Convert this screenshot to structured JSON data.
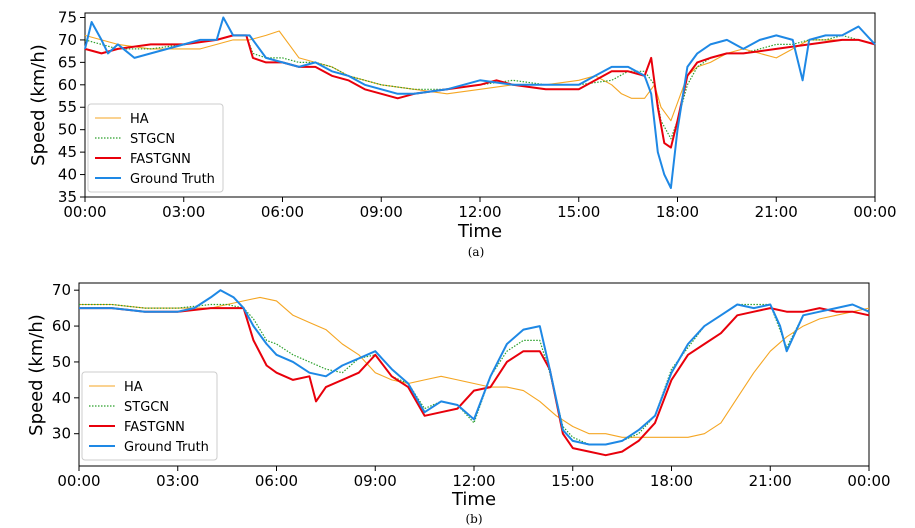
{
  "chart_data": [
    {
      "type": "line",
      "panel_label": "(a)",
      "xlabel": "Time",
      "ylabel": "Speed (km/h)",
      "xlim": [
        0,
        24
      ],
      "ylim": [
        35,
        76
      ],
      "xticks": [
        0,
        3,
        6,
        9,
        12,
        15,
        18,
        21,
        24
      ],
      "xtick_labels": [
        "00:00",
        "03:00",
        "06:00",
        "09:00",
        "12:00",
        "15:00",
        "18:00",
        "21:00",
        "00:00"
      ],
      "yticks": [
        35,
        40,
        45,
        50,
        55,
        60,
        65,
        70,
        75
      ],
      "ytick_labels": [
        "35",
        "40",
        "45",
        "50",
        "55",
        "60",
        "65",
        "70",
        "75"
      ],
      "grid": false,
      "legend_position": "lower-left",
      "series": [
        {
          "name": "HA",
          "color": "#f5a623",
          "style": "solid",
          "x": [
            0,
            1,
            2,
            3,
            3.5,
            4,
            4.5,
            5,
            5.5,
            5.9,
            6.2,
            6.5,
            7,
            7.5,
            8,
            9,
            10,
            11,
            12,
            13,
            14,
            15,
            15.5,
            16,
            16.3,
            16.6,
            17,
            17.3,
            17.5,
            17.8,
            18,
            18.3,
            18.6,
            19,
            19.5,
            20,
            20.5,
            21,
            21.5,
            22,
            23,
            23.5,
            24
          ],
          "y": [
            71,
            69,
            68,
            68,
            68,
            69,
            70,
            70,
            71,
            72,
            69,
            66,
            65,
            64,
            62,
            60,
            59,
            58,
            59,
            60,
            60,
            61,
            62,
            60,
            58,
            57,
            57,
            60,
            55,
            52,
            56,
            62,
            64,
            65,
            67,
            68,
            67,
            66,
            68,
            70,
            70,
            70,
            69
          ]
        },
        {
          "name": "STGCN",
          "color": "#2ca02c",
          "style": "dotted",
          "x": [
            0,
            0.5,
            1,
            2,
            3,
            4,
            4.5,
            4.9,
            5.1,
            5.5,
            6,
            6.5,
            7,
            7.5,
            8,
            8.5,
            9,
            10,
            11,
            12,
            13,
            14,
            15,
            16,
            16.5,
            17,
            17.3,
            17.5,
            17.8,
            18,
            18.3,
            18.6,
            19,
            19.5,
            20,
            20.5,
            21,
            21.5,
            22,
            22.5,
            23,
            23.5,
            24
          ],
          "y": [
            70,
            69,
            68,
            68,
            69,
            70,
            71,
            71,
            67,
            66,
            66,
            65,
            65,
            64,
            62,
            61,
            60,
            59,
            59,
            60,
            61,
            60,
            60,
            61,
            63,
            63,
            60,
            52,
            48,
            52,
            60,
            64,
            66,
            67,
            67,
            68,
            69,
            69,
            70,
            70,
            71,
            70,
            69
          ]
        },
        {
          "name": "FASTGNN",
          "color": "#e8000b",
          "style": "solid",
          "x": [
            0,
            0.5,
            1,
            2,
            3,
            4,
            4.5,
            4.9,
            5.1,
            5.5,
            6,
            6.5,
            7,
            7.5,
            8,
            8.5,
            9,
            9.5,
            10,
            11,
            12,
            12.5,
            13,
            14,
            15,
            16,
            16.5,
            17,
            17.2,
            17.4,
            17.6,
            17.8,
            18,
            18.3,
            18.6,
            19,
            19.5,
            20,
            21,
            22,
            23,
            23.5,
            24
          ],
          "y": [
            68,
            67,
            68,
            69,
            69,
            70,
            71,
            71,
            66,
            65,
            65,
            64,
            64,
            62,
            61,
            59,
            58,
            57,
            58,
            59,
            60,
            61,
            60,
            59,
            59,
            63,
            63,
            62,
            66,
            55,
            47,
            46,
            52,
            62,
            65,
            66,
            67,
            67,
            68,
            69,
            70,
            70,
            69
          ]
        },
        {
          "name": "Ground Truth",
          "color": "#1e88e5",
          "style": "solid",
          "x": [
            0,
            0.2,
            0.5,
            0.7,
            1,
            1.5,
            2,
            2.5,
            3,
            3.5,
            4,
            4.2,
            4.5,
            5,
            5.5,
            6,
            6.5,
            7,
            7.5,
            8,
            8.5,
            9,
            9.5,
            10,
            11,
            12,
            13,
            14,
            15,
            15.5,
            16,
            16.5,
            17,
            17.2,
            17.4,
            17.6,
            17.8,
            18,
            18.3,
            18.6,
            19,
            19.5,
            20,
            20.5,
            21,
            21.5,
            21.8,
            22,
            22.5,
            23,
            23.5,
            24
          ],
          "y": [
            68,
            74,
            70,
            67,
            69,
            66,
            67,
            68,
            69,
            70,
            70,
            75,
            71,
            71,
            66,
            65,
            64,
            65,
            63,
            62,
            60,
            59,
            58,
            58,
            59,
            61,
            60,
            60,
            60,
            62,
            64,
            64,
            62,
            58,
            45,
            40,
            37,
            50,
            64,
            67,
            69,
            70,
            68,
            70,
            71,
            70,
            61,
            70,
            71,
            71,
            73,
            69
          ]
        }
      ]
    },
    {
      "type": "line",
      "panel_label": "(b)",
      "xlabel": "Time",
      "ylabel": "Speed (km/h)",
      "xlim": [
        0,
        24
      ],
      "ylim": [
        21,
        72
      ],
      "xticks": [
        0,
        3,
        6,
        9,
        12,
        15,
        18,
        21,
        24
      ],
      "xtick_labels": [
        "00:00",
        "03:00",
        "06:00",
        "09:00",
        "12:00",
        "15:00",
        "18:00",
        "21:00",
        "00:00"
      ],
      "yticks": [
        30,
        40,
        50,
        60,
        70
      ],
      "ytick_labels": [
        "30",
        "40",
        "50",
        "60",
        "70"
      ],
      "grid": false,
      "legend_position": "lower-left",
      "series": [
        {
          "name": "HA",
          "color": "#f5a623",
          "style": "solid",
          "x": [
            0,
            1,
            2,
            3,
            4,
            4.5,
            5,
            5.5,
            6,
            6.5,
            7,
            7.5,
            8,
            8.5,
            9,
            9.5,
            10,
            10.5,
            11,
            11.5,
            12,
            12.5,
            13,
            13.5,
            14,
            14.5,
            15,
            15.5,
            16,
            16.5,
            17,
            17.5,
            18,
            18.5,
            19,
            19.5,
            20,
            20.5,
            21,
            21.5,
            22,
            22.5,
            23,
            23.5,
            24
          ],
          "y": [
            66,
            66,
            65,
            65,
            65,
            66,
            67,
            68,
            67,
            63,
            61,
            59,
            55,
            52,
            47,
            45,
            44,
            45,
            46,
            45,
            44,
            43,
            43,
            42,
            39,
            35,
            32,
            30,
            30,
            29,
            29,
            29,
            29,
            29,
            30,
            33,
            40,
            47,
            53,
            57,
            60,
            62,
            63,
            64,
            65
          ]
        },
        {
          "name": "STGCN",
          "color": "#2ca02c",
          "style": "dotted",
          "x": [
            0,
            1,
            2,
            3,
            4,
            4.5,
            5,
            5.3,
            5.7,
            6,
            6.5,
            7,
            7.5,
            8,
            8.5,
            9,
            9.5,
            10,
            10.5,
            11,
            11.5,
            12,
            12.5,
            13,
            13.5,
            14,
            14.3,
            14.7,
            15,
            15.5,
            16,
            16.5,
            17,
            17.5,
            18,
            18.5,
            19,
            19.5,
            20,
            20.5,
            21,
            21.5,
            22,
            22.5,
            23,
            23.5,
            24
          ],
          "y": [
            66,
            66,
            65,
            65,
            66,
            66,
            65,
            62,
            56,
            55,
            52,
            50,
            48,
            47,
            51,
            52,
            46,
            44,
            37,
            39,
            38,
            33,
            46,
            53,
            56,
            56,
            47,
            32,
            29,
            27,
            27,
            28,
            30,
            35,
            48,
            54,
            60,
            63,
            66,
            66,
            66,
            54,
            63,
            64,
            65,
            66,
            64
          ]
        },
        {
          "name": "FASTGNN",
          "color": "#e8000b",
          "style": "solid",
          "x": [
            0,
            1,
            2,
            3,
            4,
            4.5,
            5,
            5.3,
            5.7,
            6,
            6.5,
            7,
            7.2,
            7.5,
            8,
            8.5,
            9,
            9.5,
            10,
            10.5,
            11,
            11.5,
            12,
            12.5,
            13,
            13.5,
            14,
            14.3,
            14.7,
            15,
            15.5,
            16,
            16.5,
            17,
            17.5,
            18,
            18.5,
            19,
            19.5,
            20,
            20.5,
            21,
            21.5,
            22,
            22.5,
            23,
            23.5,
            24
          ],
          "y": [
            65,
            65,
            64,
            64,
            65,
            65,
            65,
            56,
            49,
            47,
            45,
            46,
            39,
            43,
            45,
            47,
            52,
            46,
            43,
            35,
            36,
            37,
            42,
            43,
            50,
            53,
            53,
            48,
            30,
            26,
            25,
            24,
            25,
            28,
            33,
            45,
            52,
            55,
            58,
            63,
            64,
            65,
            64,
            64,
            65,
            64,
            64,
            63
          ]
        },
        {
          "name": "Ground Truth",
          "color": "#1e88e5",
          "style": "solid",
          "x": [
            0,
            1,
            2,
            3,
            3.5,
            4,
            4.3,
            4.7,
            5,
            5.3,
            5.7,
            6,
            6.5,
            7,
            7.5,
            8,
            8.5,
            9,
            9.5,
            10,
            10.5,
            11,
            11.5,
            12,
            12.5,
            13,
            13.5,
            14,
            14.3,
            14.7,
            15,
            15.5,
            16,
            16.5,
            17,
            17.5,
            18,
            18.5,
            19,
            19.5,
            20,
            20.5,
            21,
            21.3,
            21.5,
            22,
            22.5,
            23,
            23.5,
            24
          ],
          "y": [
            65,
            65,
            64,
            64,
            65,
            68,
            70,
            68,
            65,
            60,
            55,
            52,
            50,
            47,
            46,
            49,
            51,
            53,
            48,
            44,
            36,
            39,
            38,
            34,
            46,
            55,
            59,
            60,
            48,
            31,
            28,
            27,
            27,
            28,
            31,
            35,
            47,
            55,
            60,
            63,
            66,
            65,
            66,
            60,
            53,
            63,
            64,
            65,
            66,
            64
          ]
        }
      ]
    }
  ]
}
